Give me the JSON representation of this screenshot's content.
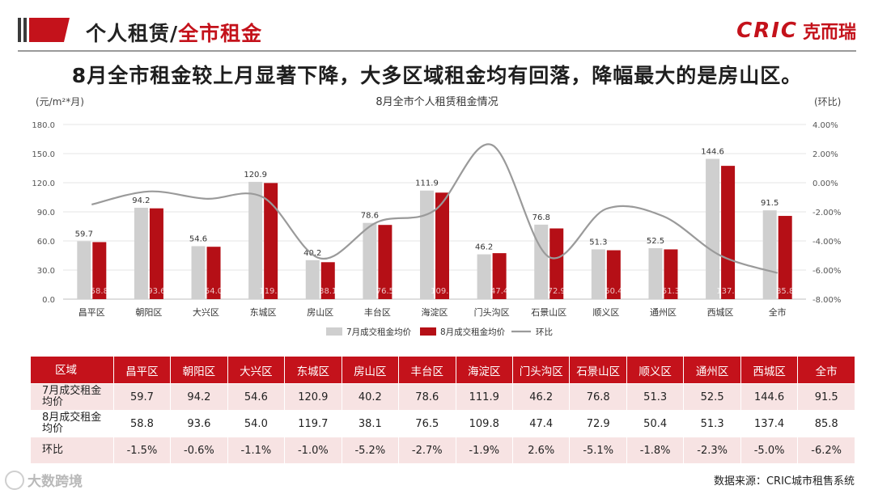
{
  "header": {
    "section_title_prefix": "个人租赁/",
    "section_title_highlight": "全市租金",
    "logo_brand": "CRIC",
    "logo_cn": "克而瑞"
  },
  "headline": "8月全市租金较上月显著下降，大多区域租金均有回落，降幅最大的是房山区。",
  "chart_data": {
    "type": "bar",
    "title": "8月全市个人租赁租金情况",
    "ylabel": "(元/m²*月)",
    "y2label": "(环比)",
    "categories": [
      "昌平区",
      "朝阳区",
      "大兴区",
      "东城区",
      "房山区",
      "丰台区",
      "海淀区",
      "门头沟区",
      "石景山区",
      "顺义区",
      "通州区",
      "西城区",
      "全市"
    ],
    "series": [
      {
        "name": "7月成交租金均价",
        "type": "bar",
        "color": "#cfcfcf",
        "values": [
          59.7,
          94.2,
          54.6,
          120.9,
          40.2,
          78.6,
          111.9,
          46.2,
          76.8,
          51.3,
          52.5,
          144.6,
          91.5
        ]
      },
      {
        "name": "8月成交租金均价",
        "type": "bar",
        "color": "#b50f16",
        "values": [
          58.8,
          93.6,
          54.0,
          119.7,
          38.1,
          76.5,
          109.8,
          47.4,
          72.9,
          50.4,
          51.3,
          137.4,
          85.8
        ]
      },
      {
        "name": "环比",
        "type": "line",
        "axis": "right",
        "color": "#9a9a9a",
        "values": [
          -1.5,
          -0.6,
          -1.1,
          -1.0,
          -5.2,
          -2.7,
          -1.9,
          2.6,
          -5.1,
          -1.8,
          -2.3,
          -5.0,
          -6.2
        ]
      }
    ],
    "bar_labels_7": [
      "59.7",
      "94.2",
      "54.6",
      "120.9",
      "40.2",
      "78.6",
      "111.9",
      "46.2",
      "76.8",
      "51.3",
      "52.5",
      "144.6",
      "91.5"
    ],
    "bar_labels_8": [
      "58.8",
      "93.6",
      "54.0",
      "119.7",
      "38.1",
      "76.5",
      "109.8",
      "47.4",
      "72.9",
      "50.4",
      "51.3",
      "137.4",
      "85.8"
    ],
    "ylim": [
      0,
      180
    ],
    "yticks": [
      "0.0",
      "30.0",
      "60.0",
      "90.0",
      "120.0",
      "150.0",
      "180.0"
    ],
    "y2lim": [
      -8,
      4
    ],
    "y2ticks": [
      "-8.00%",
      "-6.00%",
      "-4.00%",
      "-2.00%",
      "0.00%",
      "2.00%",
      "4.00%"
    ],
    "legend": [
      "7月成交租金均价",
      "8月成交租金均价",
      "环比"
    ],
    "legend_position": "bottom"
  },
  "table": {
    "header": [
      "区域",
      "昌平区",
      "朝阳区",
      "大兴区",
      "东城区",
      "房山区",
      "丰台区",
      "海淀区",
      "门头沟区",
      "石景山区",
      "顺义区",
      "通州区",
      "西城区",
      "全市"
    ],
    "rows": [
      {
        "label": "7月成交租金均价",
        "cells": [
          "59.7",
          "94.2",
          "54.6",
          "120.9",
          "40.2",
          "78.6",
          "111.9",
          "46.2",
          "76.8",
          "51.3",
          "52.5",
          "144.6",
          "91.5"
        ]
      },
      {
        "label": "8月成交租金均价",
        "cells": [
          "58.8",
          "93.6",
          "54.0",
          "119.7",
          "38.1",
          "76.5",
          "109.8",
          "47.4",
          "72.9",
          "50.4",
          "51.3",
          "137.4",
          "85.8"
        ]
      },
      {
        "label": "环比",
        "cells": [
          "-1.5%",
          "-0.6%",
          "-1.1%",
          "-1.0%",
          "-5.2%",
          "-2.7%",
          "-1.9%",
          "2.6%",
          "-5.1%",
          "-1.8%",
          "-2.3%",
          "-5.0%",
          "-6.2%"
        ]
      }
    ]
  },
  "footer": {
    "watermark": "大数跨境",
    "source": "数据来源：CRIC城市租售系统"
  }
}
